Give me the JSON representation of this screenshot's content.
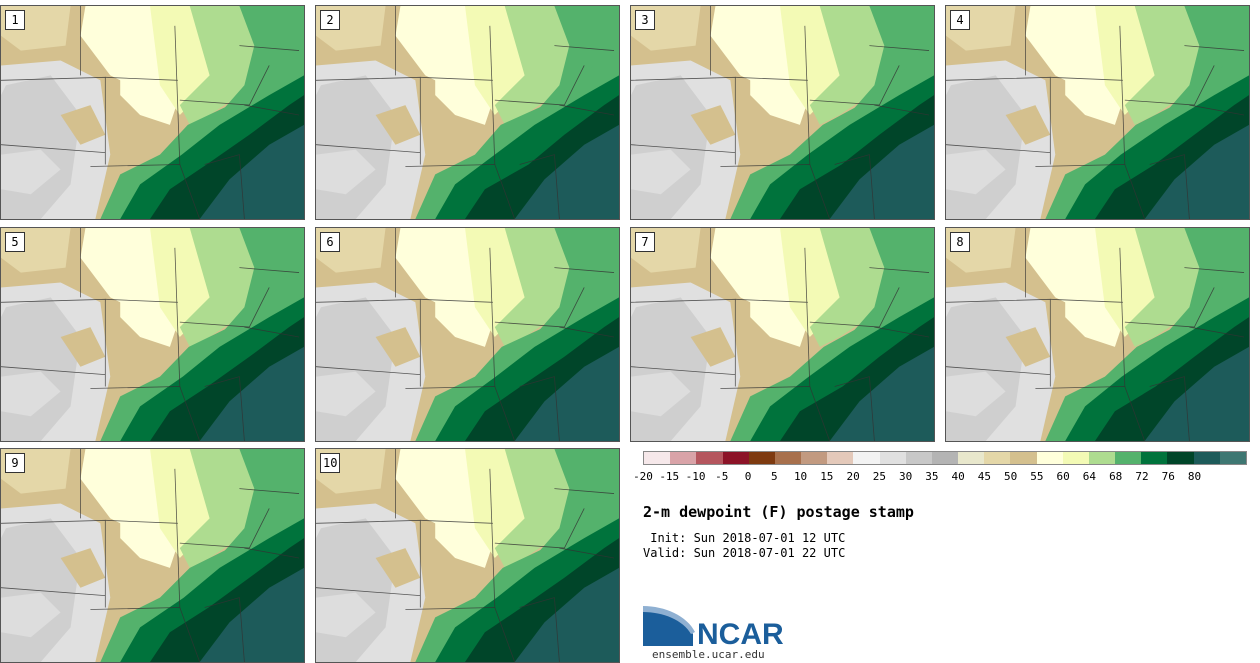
{
  "title": "2-m dewpoint (F) postage stamp",
  "init_line": " Init: Sun 2018-07-01 12 UTC",
  "valid_line": "Valid: Sun 2018-07-01 22 UTC",
  "logo_text": "NCAR",
  "site": "ensemble.ucar.edu",
  "members": [
    "1",
    "2",
    "3",
    "4",
    "5",
    "6",
    "7",
    "8",
    "9",
    "10"
  ],
  "colorbar": {
    "labels": [
      "-20",
      "-15",
      "-10",
      "-5",
      "0",
      "5",
      "10",
      "15",
      "20",
      "25",
      "30",
      "35",
      "40",
      "45",
      "50",
      "55",
      "60",
      "64",
      "68",
      "72",
      "76",
      "80"
    ],
    "colors": [
      "#f6e8ea",
      "#d9a3a8",
      "#b5565e",
      "#8c1327",
      "#7e3a10",
      "#a8704c",
      "#c29a80",
      "#e4c9ba",
      "#f3f3f3",
      "#e0e0e0",
      "#c8c8c8",
      "#b4b4b4",
      "#e8e7cc",
      "#e4d7a8",
      "#d4c08e",
      "#ffffdb",
      "#f3fab5",
      "#aedc90",
      "#54b26c",
      "#00733c",
      "#004529",
      "#1d5b5a",
      "#3e7772"
    ]
  },
  "map_colors": {
    "brown": "#d4c08e",
    "tan": "#e4d7a8",
    "gray": "#c8c8c8",
    "lightgray": "#e0e0e0",
    "cream": "#ffffdb",
    "yellow": "#f3fab5",
    "lightgreen": "#aedc90",
    "midgreen": "#54b26c",
    "green": "#00733c",
    "darkgreen": "#004529",
    "teal": "#1d5b5a",
    "border": "#333333"
  }
}
